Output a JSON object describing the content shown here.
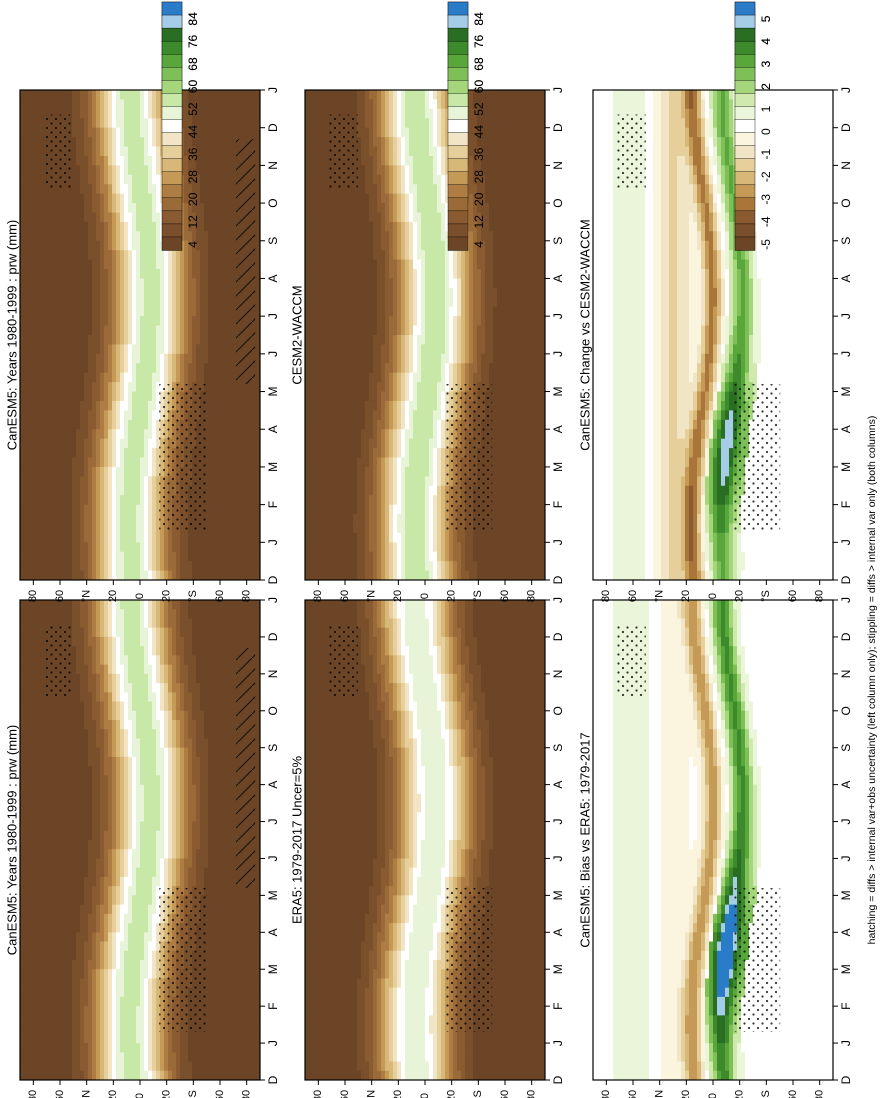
{
  "figure_note": "hatching = diffs > internal var+obs uncertainty (left column only); stippling = diffs > internal var only (both columns)",
  "palette_main": [
    "#6b4526",
    "#7a4f2b",
    "#8a5a31",
    "#9b6a39",
    "#ae7d43",
    "#c49a56",
    "#d8b878",
    "#e6cf9a",
    "#f2e5c6",
    "#ffffff",
    "#e8f4d8",
    "#c8e8a8",
    "#a5d67b",
    "#7fbf57",
    "#59a63b",
    "#3c8a2c",
    "#2a6e24",
    "#a6cde8",
    "#2a7cc8"
  ],
  "palette_diff": [
    "#6b4526",
    "#7a4f2b",
    "#8a5a31",
    "#a97539",
    "#c49a56",
    "#d8b878",
    "#e6cf9a",
    "#f2e5c6",
    "#fbf5e0",
    "#ffffff",
    "#eaf5da",
    "#cfe9ae",
    "#a5d67b",
    "#7fbf57",
    "#59a63b",
    "#3c8a2c",
    "#2a6e24",
    "#a6cde8",
    "#2a7cc8"
  ],
  "colorbar_main_ticks": [
    "84",
    "76",
    "68",
    "60",
    "52",
    "44",
    "36",
    "28",
    "20",
    "12",
    "4"
  ],
  "colorbar_diff_ticks": [
    "5",
    "4",
    "3",
    "2",
    "1",
    "0",
    "-1",
    "-2",
    "-3",
    "-4",
    "-5"
  ],
  "month_labels": [
    "D",
    "J",
    "F",
    "M",
    "A",
    "M",
    "J",
    "J",
    "A",
    "S",
    "O",
    "N",
    "D",
    "J"
  ],
  "lat_labels": [
    "80",
    "60",
    "°N",
    "20",
    "0",
    "20",
    "°S",
    "60",
    "80"
  ],
  "chart_data": [
    {
      "id": "p1",
      "type": "heatmap",
      "title": "CanESM5: Years 1980-1999 : prw (mm)",
      "variable": "prw",
      "units": "mm",
      "mode": "main",
      "year_a": "1980",
      "year_b": "1999"
    },
    {
      "id": "p2",
      "type": "heatmap",
      "title": "CanESM5: Years 1980-1999 : prw (mm)",
      "variable": "prw",
      "units": "mm",
      "mode": "main",
      "year_a": "1980",
      "year_b": "1999"
    },
    {
      "id": "p3",
      "type": "heatmap",
      "title": "ERA5: 1979-2017 Uncer=5%",
      "mode": "main",
      "year_a": "1979",
      "year_b": "2017",
      "uncertainty": "5%"
    },
    {
      "id": "p4",
      "type": "heatmap",
      "title": "CESM2-WACCM",
      "mode": "main"
    },
    {
      "id": "p5",
      "type": "heatmap",
      "title": "CanESM5: Bias vs ERA5: 1979-2017",
      "mode": "diff",
      "year_a": "1979",
      "year_b": "2017"
    },
    {
      "id": "p6",
      "type": "heatmap",
      "title": "CanESM5: Change vs CESM2-WACCM",
      "mode": "diff"
    }
  ]
}
